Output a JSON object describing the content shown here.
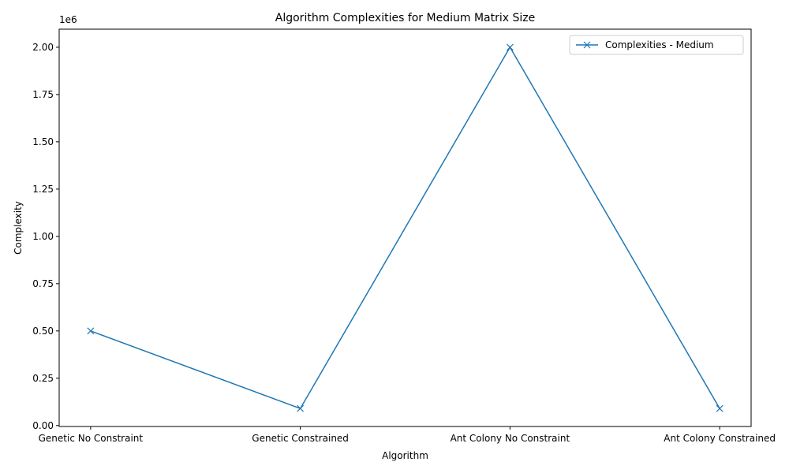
{
  "chart_data": {
    "type": "line",
    "title": "Algorithm Complexities for Medium Matrix Size",
    "xlabel": "Algorithm",
    "ylabel": "Complexity",
    "y_offset_label": "1e6",
    "categories": [
      "Genetic No Constraint",
      "Genetic Constrained",
      "Ant Colony No Constraint",
      "Ant Colony Constrained"
    ],
    "series": [
      {
        "name": "Complexities - Medium",
        "values": [
          500000,
          90000,
          2000000,
          90000
        ],
        "color": "#1f77b4",
        "marker": "x"
      }
    ],
    "ylim": [
      -5000,
      2095500
    ],
    "yticks": [
      0,
      250000,
      500000,
      750000,
      1000000,
      1250000,
      1500000,
      1750000,
      2000000
    ],
    "ytick_labels": [
      "0.00",
      "0.25",
      "0.50",
      "0.75",
      "1.00",
      "1.25",
      "1.50",
      "1.75",
      "2.00"
    ],
    "grid": false,
    "legend_position": "upper-right"
  }
}
